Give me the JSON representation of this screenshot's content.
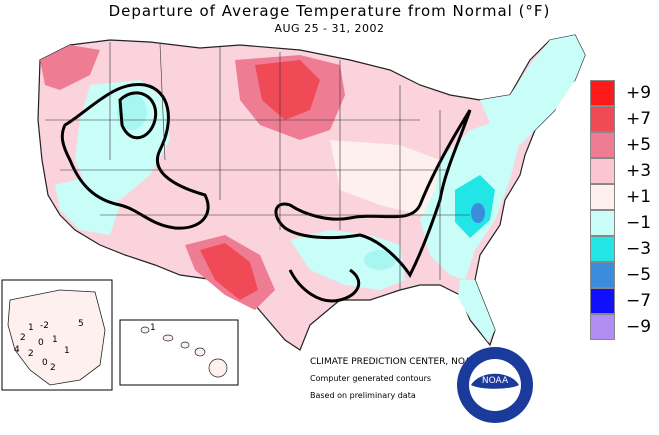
{
  "map": {
    "title": "Departure of Average Temperature from Normal (°F)",
    "date_range": "AUG 25 - 31, 2002",
    "credit_line": "CLIMATE PREDICTION CENTER, NOAA",
    "note_line_1": "Computer generated contours",
    "note_line_2": "Based on preliminary data",
    "logo_text": "NOAA"
  },
  "legend": {
    "items": [
      {
        "label": "+9",
        "color": "#ff1a1a"
      },
      {
        "label": "+7",
        "color": "#f04a57"
      },
      {
        "label": "+5",
        "color": "#ee7d93"
      },
      {
        "label": "+3",
        "color": "#fbc6d2"
      },
      {
        "label": "+1",
        "color": "#fdf0ef"
      },
      {
        "label": "−1",
        "color": "#c8fdf8"
      },
      {
        "label": "−3",
        "color": "#22e6e6"
      },
      {
        "label": "−5",
        "color": "#3c8cde"
      },
      {
        "label": "−7",
        "color": "#1010ff"
      },
      {
        "label": "−9",
        "color": "#b08ef2"
      }
    ]
  },
  "alaska_labels": [
    "1",
    "-2",
    "5",
    "2",
    "0",
    "1",
    "4",
    "2",
    "0",
    "2",
    "1"
  ],
  "hawaii_labels": [
    "1"
  ]
}
